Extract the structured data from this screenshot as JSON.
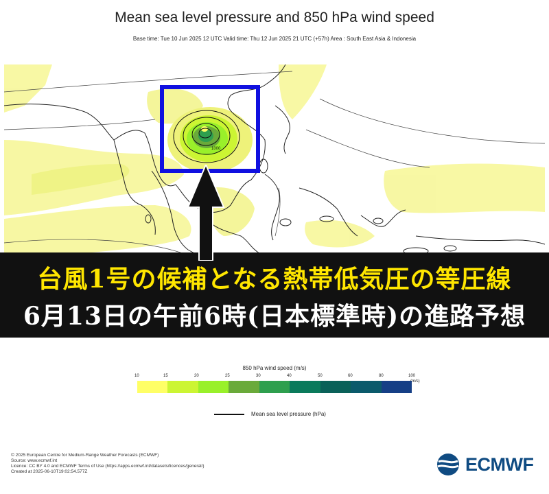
{
  "header": {
    "title": "Mean sea level pressure and 850 hPa wind speed",
    "subtitle": "Base time: Tue 10 Jun 2025 12 UTC Valid time: Thu 12 Jun 2025 21 UTC (+57h) Area : South East Asia & Indonesia"
  },
  "map": {
    "region": "South East Asia & Indonesia",
    "highlight_box_color": "#1010e0",
    "isobar_label": "1000",
    "arrow_color": "#111111"
  },
  "banner": {
    "line1": "台風1号の候補となる熱帯低気圧の等圧線",
    "line2": "6月13日の午前6時(日本標準時)の進路予想",
    "line1_color": "#ffe600",
    "line2_color": "#ffffff"
  },
  "legend": {
    "title": "850 hPa wind speed (m/s)",
    "ticks": [
      "10",
      "15",
      "20",
      "25",
      "30",
      "40",
      "50",
      "60",
      "80",
      "100"
    ],
    "unit": "(m/s)",
    "colors": [
      "#ffff66",
      "#ccf533",
      "#99f02a",
      "#6aaa3a",
      "#2e9f4e",
      "#0a7a5b",
      "#0a6159",
      "#0b5a6b",
      "#163f86",
      "#1f3fb8"
    ],
    "pressure_label": "Mean sea level pressure (hPa)"
  },
  "credits": [
    "© 2025 European Centre for Medium-Range Weather Forecasts (ECMWF)",
    "Source: www.ecmwf.int",
    "Licence: CC BY 4.0 and ECMWF Terms of Use (https://apps.ecmwf.int/datasets/licences/general/)",
    "Created at 2025-06-10T19:02:54.577Z"
  ],
  "logo": {
    "text": "ECMWF",
    "color": "#0f4b82"
  }
}
